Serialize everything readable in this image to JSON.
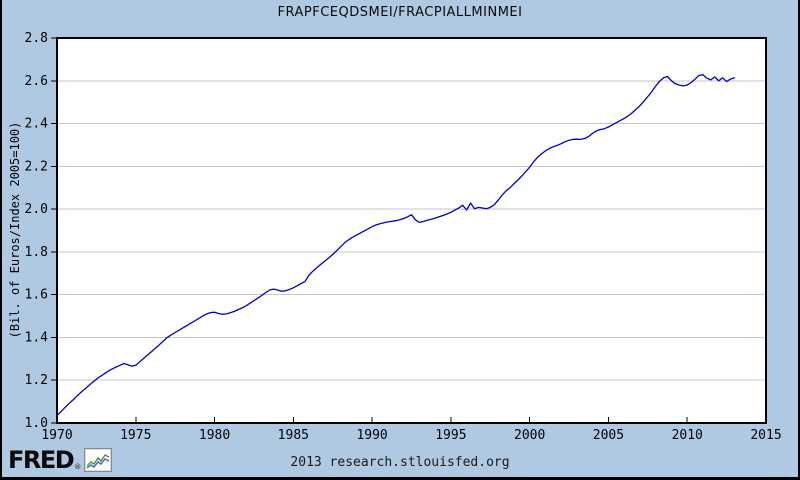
{
  "header": {
    "title": "FRAPFCEQDSMEI/FRACPIALLMINMEI"
  },
  "footer": {
    "text": "2013 research.stlouisfed.org"
  },
  "logo": {
    "text": "FRED",
    "reg_mark": "®",
    "icon": "line-chart-icon"
  },
  "colors": {
    "background": "#b0c9e2",
    "plot_background": "#ffffff",
    "grid": "#c6c6c6",
    "line": "#0000cc",
    "axis": "#000000",
    "text": "#000000",
    "logo_icon_green": "#4a8f4a",
    "logo_icon_blue": "#4466aa"
  },
  "chart_data": {
    "type": "line",
    "title": "FRAPFCEQDSMEI/FRACPIALLMINMEI",
    "xlabel": "",
    "ylabel": "(Bil. of Euros/Index 2005=100)",
    "xlim": [
      1970,
      2015
    ],
    "ylim": [
      1.0,
      2.8
    ],
    "x_ticks": [
      1970,
      1975,
      1980,
      1985,
      1990,
      1995,
      2000,
      2005,
      2010,
      2015
    ],
    "y_ticks": [
      1.0,
      1.2,
      1.4,
      1.6,
      1.8,
      2.0,
      2.2,
      2.4,
      2.6,
      2.8
    ],
    "grid": "horizontal",
    "legend": "none",
    "series": [
      {
        "name": "FRAPFCEQDSMEI/FRACPIALLMINMEI",
        "color": "#0000cc",
        "x": [
          1970,
          1970.25,
          1970.5,
          1970.75,
          1971,
          1971.25,
          1971.5,
          1971.75,
          1972,
          1972.25,
          1972.5,
          1972.75,
          1973,
          1973.25,
          1973.5,
          1973.75,
          1974,
          1974.25,
          1974.5,
          1974.75,
          1975,
          1975.25,
          1975.5,
          1975.75,
          1976,
          1976.25,
          1976.5,
          1976.75,
          1977,
          1977.25,
          1977.5,
          1977.75,
          1978,
          1978.25,
          1978.5,
          1978.75,
          1979,
          1979.25,
          1979.5,
          1979.75,
          1980,
          1980.25,
          1980.5,
          1980.75,
          1981,
          1981.25,
          1981.5,
          1981.75,
          1982,
          1982.25,
          1982.5,
          1982.75,
          1983,
          1983.25,
          1983.5,
          1983.75,
          1984,
          1984.25,
          1984.5,
          1984.75,
          1985,
          1985.25,
          1985.5,
          1985.75,
          1986,
          1986.25,
          1986.5,
          1986.75,
          1987,
          1987.25,
          1987.5,
          1987.75,
          1988,
          1988.25,
          1988.5,
          1988.75,
          1989,
          1989.25,
          1989.5,
          1989.75,
          1990,
          1990.25,
          1990.5,
          1990.75,
          1991,
          1991.25,
          1991.5,
          1991.75,
          1992,
          1992.25,
          1992.5,
          1992.75,
          1993,
          1993.25,
          1993.5,
          1993.75,
          1994,
          1994.25,
          1994.5,
          1994.75,
          1995,
          1995.25,
          1995.5,
          1995.75,
          1996,
          1996.25,
          1996.5,
          1996.75,
          1997,
          1997.25,
          1997.5,
          1997.75,
          1998,
          1998.25,
          1998.5,
          1998.75,
          1999,
          1999.25,
          1999.5,
          1999.75,
          2000,
          2000.25,
          2000.5,
          2000.75,
          2001,
          2001.25,
          2001.5,
          2001.75,
          2002,
          2002.25,
          2002.5,
          2002.75,
          2003,
          2003.25,
          2003.5,
          2003.75,
          2004,
          2004.25,
          2004.5,
          2004.75,
          2005,
          2005.25,
          2005.5,
          2005.75,
          2006,
          2006.25,
          2006.5,
          2006.75,
          2007,
          2007.25,
          2007.5,
          2007.75,
          2008,
          2008.25,
          2008.5,
          2008.75,
          2009,
          2009.25,
          2009.5,
          2009.75,
          2010,
          2010.25,
          2010.5,
          2010.75,
          2011,
          2011.25,
          2011.5,
          2011.75,
          2012,
          2012.25,
          2012.5,
          2012.75,
          2013
        ],
        "y": [
          1.035,
          1.053,
          1.072,
          1.09,
          1.107,
          1.125,
          1.142,
          1.158,
          1.174,
          1.19,
          1.205,
          1.218,
          1.23,
          1.242,
          1.252,
          1.262,
          1.27,
          1.278,
          1.272,
          1.266,
          1.27,
          1.286,
          1.302,
          1.318,
          1.334,
          1.35,
          1.366,
          1.383,
          1.4,
          1.412,
          1.423,
          1.434,
          1.445,
          1.456,
          1.467,
          1.478,
          1.489,
          1.5,
          1.51,
          1.516,
          1.518,
          1.512,
          1.508,
          1.51,
          1.515,
          1.522,
          1.53,
          1.538,
          1.548,
          1.56,
          1.572,
          1.584,
          1.596,
          1.61,
          1.622,
          1.626,
          1.622,
          1.616,
          1.618,
          1.624,
          1.632,
          1.642,
          1.652,
          1.662,
          1.692,
          1.71,
          1.727,
          1.742,
          1.757,
          1.772,
          1.788,
          1.806,
          1.824,
          1.842,
          1.856,
          1.868,
          1.878,
          1.888,
          1.898,
          1.908,
          1.918,
          1.926,
          1.932,
          1.936,
          1.94,
          1.943,
          1.946,
          1.95,
          1.956,
          1.964,
          1.974,
          1.95,
          1.938,
          1.942,
          1.948,
          1.953,
          1.958,
          1.964,
          1.97,
          1.977,
          1.985,
          1.995,
          2.005,
          2.018,
          1.996,
          2.028,
          2.002,
          2.008,
          2.005,
          2.002,
          2.008,
          2.02,
          2.042,
          2.065,
          2.085,
          2.1,
          2.118,
          2.136,
          2.155,
          2.175,
          2.196,
          2.221,
          2.242,
          2.258,
          2.272,
          2.284,
          2.292,
          2.298,
          2.306,
          2.315,
          2.322,
          2.326,
          2.327,
          2.326,
          2.33,
          2.34,
          2.355,
          2.366,
          2.372,
          2.376,
          2.384,
          2.394,
          2.404,
          2.414,
          2.424,
          2.436,
          2.45,
          2.466,
          2.484,
          2.504,
          2.526,
          2.55,
          2.575,
          2.598,
          2.614,
          2.62,
          2.6,
          2.586,
          2.58,
          2.576,
          2.58,
          2.592,
          2.608,
          2.625,
          2.628,
          2.612,
          2.604,
          2.618,
          2.6,
          2.614,
          2.596,
          2.608,
          2.614
        ]
      }
    ]
  }
}
